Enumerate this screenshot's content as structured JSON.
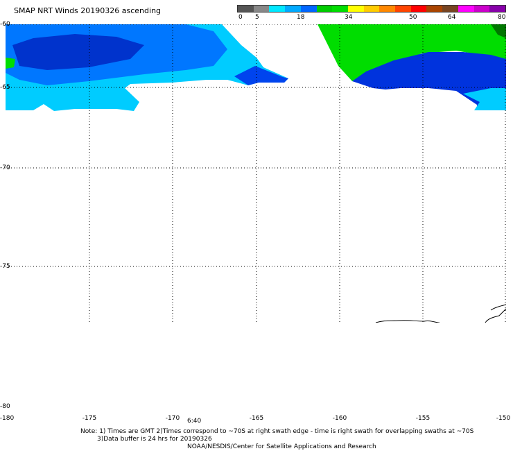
{
  "title": "SMAP NRT Winds 20190326 ascending",
  "colorbar": {
    "labels": [
      "0",
      "5",
      "18",
      "34",
      "50",
      "64",
      "80"
    ],
    "segments": [
      "#555555",
      "#888888",
      "#00e8ff",
      "#00aaff",
      "#0066ff",
      "#00cc00",
      "#00dd00",
      "#ffff00",
      "#ffcc00",
      "#ff8800",
      "#ff4400",
      "#ff0000",
      "#aa4400",
      "#774422",
      "#ff00ff",
      "#cc00cc",
      "#8800aa"
    ]
  },
  "lat_labels": [
    "-60",
    "-65",
    "-70",
    "-75",
    "-80"
  ],
  "lon_labels": [
    "-180",
    "-175",
    "-170",
    "-165",
    "-160",
    "-155",
    "-150"
  ],
  "time_label": "6:40",
  "notes": {
    "line1": "Note: 1) Times are GMT 2)Times correspond to ~70S at right swath edge - time is right swath for overlapping swaths at ~70S",
    "line2": "3)Data buffer is 24 hrs for 20190326",
    "line3": "NOAA/NESDIS/Center for Satellite Applications and Research"
  },
  "colors": {
    "wind_blue_dark": "#0033dd",
    "wind_blue": "#0088ff",
    "wind_cyan": "#00ddff",
    "wind_green": "#00dd00"
  }
}
